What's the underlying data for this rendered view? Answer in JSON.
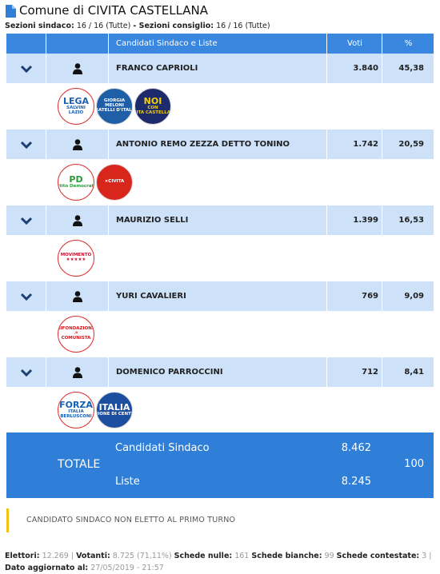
{
  "header": {
    "title": "Comune di CIVITA CASTELLANA",
    "sections": [
      {
        "label": "Sezioni sindaco:",
        "value": "16 / 16 (Tutte)"
      },
      {
        "label": "- Sezioni consiglio:",
        "value": "16 / 16 (Tutte)"
      }
    ]
  },
  "table": {
    "columns": [
      "Candidati Sindaco e Liste",
      "Voti",
      "%"
    ],
    "candidates": [
      {
        "name": "FRANCO CAPRIOLI",
        "votes": "3.840",
        "percent": "45,38",
        "lists": [
          {
            "lines": [
              "LEGA",
              "SALVINI",
              "LAZIO"
            ],
            "bg": "#ffffff",
            "fg": "#1b5fb3"
          },
          {
            "lines": [
              "GIORGIA",
              "MELONI",
              "FRATELLI D'ITALIA"
            ],
            "bg": "#1f5fa8",
            "fg": "#ffffff"
          },
          {
            "lines": [
              "NOI",
              "CON",
              "CIVITA CASTELLANA"
            ],
            "bg": "#1d2a6b",
            "fg": "#f3d000"
          }
        ]
      },
      {
        "name": "ANTONIO REMO ZEZZA DETTO TONINO",
        "votes": "1.742",
        "percent": "20,59",
        "lists": [
          {
            "lines": [
              "PD",
              "Partito Democratico"
            ],
            "bg": "#ffffff",
            "fg": "#2a9a3b"
          },
          {
            "lines": [
              "×CIVITA"
            ],
            "bg": "#d9261c",
            "fg": "#ffffff"
          }
        ]
      },
      {
        "name": "MAURIZIO SELLI",
        "votes": "1.399",
        "percent": "16,53",
        "lists": [
          {
            "lines": [
              "MOVIMENTO",
              "★★★★★"
            ],
            "bg": "#ffffff",
            "fg": "#c8102e"
          }
        ]
      },
      {
        "name": "YURI CAVALIERI",
        "votes": "769",
        "percent": "9,09",
        "lists": [
          {
            "lines": [
              "RIFONDAZIONE",
              "☭",
              "COMUNISTA"
            ],
            "bg": "#ffffff",
            "fg": "#d0171c"
          }
        ]
      },
      {
        "name": "DOMENICO PARROCCINI",
        "votes": "712",
        "percent": "8,41",
        "lists": [
          {
            "lines": [
              "FORZA",
              "ITALIA",
              "BERLUSCONI"
            ],
            "bg": "#ffffff",
            "fg": "#1460b8"
          },
          {
            "lines": [
              "ITALIA",
              "UNIONE DI CENTRO"
            ],
            "bg": "#1d4fa0",
            "fg": "#ffffff"
          }
        ]
      }
    ]
  },
  "total": {
    "label": "TOTALE",
    "rows": [
      {
        "label": "Candidati Sindaco",
        "value": "8.462"
      },
      {
        "label": "Liste",
        "value": "8.245"
      }
    ],
    "percent": "100"
  },
  "notice": "CANDIDATO SINDACO NON ELETTO AL PRIMO TURNO",
  "footer": [
    {
      "label": "Elettori:",
      "value": "12.269 |"
    },
    {
      "label": "Votanti:",
      "value": "8.725 (71,11%)"
    },
    {
      "label": "Schede nulle:",
      "value": "161"
    },
    {
      "label": "Schede bianche:",
      "value": "99"
    },
    {
      "label": "Schede contestate:",
      "value": "3 |"
    },
    {
      "label": "Dato aggiornato al:",
      "value": "27/05/2019 - 21:57"
    }
  ]
}
